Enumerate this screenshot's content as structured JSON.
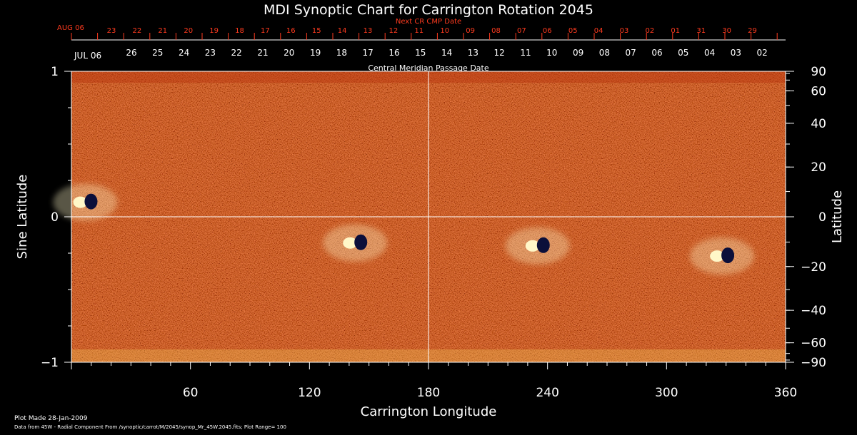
{
  "title": "MDI Synoptic Chart for Carrington Rotation 2045",
  "top_axis": {
    "next_label": "Next CR CMP Date",
    "next_start": "AUG 06",
    "next_dates": [
      "23",
      "22",
      "21",
      "20",
      "19",
      "18",
      "17",
      "16",
      "15",
      "14",
      "13",
      "12",
      "11",
      "10",
      "09",
      "08",
      "07",
      "06",
      "05",
      "04",
      "03",
      "02",
      "01",
      "31",
      "30",
      "29"
    ],
    "current_start": "JUL 06",
    "current_dates": [
      "26",
      "25",
      "24",
      "23",
      "22",
      "21",
      "20",
      "19",
      "18",
      "17",
      "16",
      "15",
      "14",
      "13",
      "12",
      "11",
      "10",
      "09",
      "08",
      "07",
      "06",
      "05",
      "04",
      "03",
      "02"
    ],
    "cmp_label": "Central Meridian Passage Date"
  },
  "footer": {
    "made": "Plot Made 28-Jan-2009",
    "source": "Data from 45W - Radial Component From /synoptic/carrot/M/2045/synop_Mr_45W.2045.fits; Plot Range=  100"
  },
  "colors": {
    "background": "#000000",
    "map_base": "#e24a12",
    "positive_flux": "#fff7c8",
    "negative_flux": "#0b0f3a",
    "date_red": "#ff3b1f"
  },
  "chart_data": {
    "type": "heatmap",
    "title": "MDI Synoptic Chart for Carrington Rotation 2045",
    "xlabel": "Carrington Longitude",
    "ylabel": "Sine Latitude",
    "y2label": "Latitude",
    "xlim": [
      0,
      360
    ],
    "ylim": [
      -1,
      1
    ],
    "x_ticks": [
      60,
      120,
      180,
      240,
      300,
      360
    ],
    "y_ticks": [
      -1,
      0,
      1
    ],
    "y_tick_labels": [
      "−1",
      "0",
      "1"
    ],
    "y2_ticks": [
      -90,
      -60,
      -40,
      -20,
      0,
      20,
      40,
      60,
      90
    ],
    "y2_tick_labels": [
      "−90",
      "−60",
      "−40",
      "−20",
      "0",
      "20",
      "40",
      "60",
      "90"
    ],
    "grid_lines": {
      "x": 180,
      "y": 0
    },
    "active_regions": [
      {
        "lon": 7,
        "sinlat": 0.1,
        "polarity": "bipolar"
      },
      {
        "lon": 143,
        "sinlat": -0.18,
        "polarity": "bipolar"
      },
      {
        "lon": 235,
        "sinlat": -0.2,
        "polarity": "bipolar"
      },
      {
        "lon": 328,
        "sinlat": -0.27,
        "polarity": "bipolar"
      }
    ]
  }
}
